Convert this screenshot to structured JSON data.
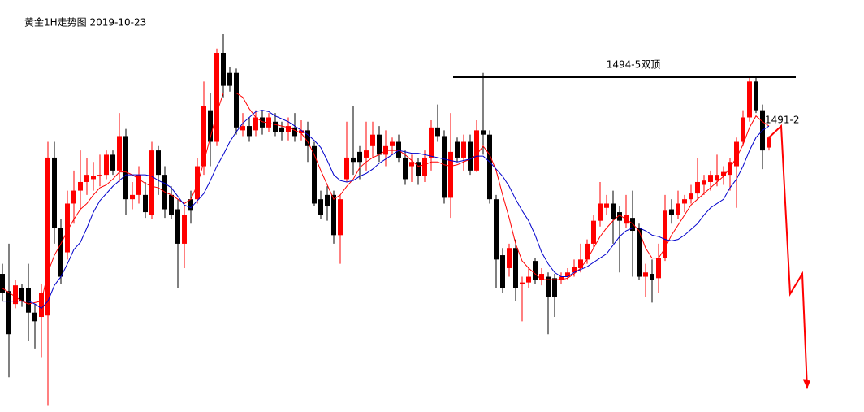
{
  "chart_data": {
    "type": "candlestick",
    "title": "黄金1H走势图 2019-10-23",
    "open": [
      1480.8,
      1479.6,
      1478.7,
      1479.8,
      1479.8,
      1478.1,
      1477.8,
      1477.9,
      1488.9,
      1484.0,
      1482.3,
      1485.7,
      1486.6,
      1487.2,
      1487.4,
      1487.6,
      1487.7,
      1489.1,
      1488.0,
      1490.4,
      1486.0,
      1486.3,
      1486.3,
      1484.9,
      1489.4,
      1487.7,
      1486.3,
      1485.3,
      1482.9,
      1486.0,
      1486.0,
      1488.3,
      1492.2,
      1490.0,
      1496.2,
      1494.8,
      1494.8,
      1490.8,
      1491.1,
      1490.8,
      1491.7,
      1491.0,
      1491.4,
      1491.0,
      1490.7,
      1491.0,
      1490.6,
      1490.8,
      1489.7,
      1486.0,
      1486.3,
      1486.3,
      1483.5,
      1487.4,
      1488.9,
      1489.3,
      1488.9,
      1489.7,
      1490.5,
      1489.1,
      1489.7,
      1490.0,
      1488.9,
      1488.3,
      1488.6,
      1487.6,
      1488.9,
      1491.0,
      1490.4,
      1486.1,
      1490.0,
      1488.9,
      1490.0,
      1488.0,
      1490.8,
      1490.5,
      1486.0,
      1482.1,
      1481.2,
      1482.6,
      1480.1,
      1480.2,
      1481.7,
      1480.4,
      1480.6,
      1480.5,
      1480.4,
      1480.6,
      1480.9,
      1481.2,
      1481.8,
      1482.9,
      1484.5,
      1485.4,
      1485.7,
      1485.1,
      1484.3,
      1484.7,
      1484.0,
      1480.6,
      1480.8,
      1480.5,
      1481.9,
      1485.3,
      1484.9,
      1485.7,
      1486.0,
      1486.4,
      1487.0,
      1487.2,
      1487.3,
      1487.6,
      1487.7,
      1488.3,
      1490.0,
      1491.7,
      1494.2,
      1492.2,
      1489.6
    ],
    "high": [
      1481.5,
      1482.9,
      1480.4,
      1480.1,
      1481.5,
      1478.7,
      1480.1,
      1490.0,
      1490.0,
      1484.6,
      1486.6,
      1488.0,
      1489.4,
      1488.9,
      1488.6,
      1489.1,
      1489.4,
      1489.4,
      1492.0,
      1490.9,
      1487.2,
      1488.3,
      1487.2,
      1490.0,
      1489.7,
      1488.3,
      1486.9,
      1486.0,
      1485.5,
      1486.6,
      1488.9,
      1494.2,
      1493.4,
      1496.5,
      1497.5,
      1495.2,
      1495.1,
      1492.0,
      1491.7,
      1492.2,
      1492.2,
      1492.0,
      1492.0,
      1491.4,
      1491.7,
      1492.0,
      1491.5,
      1491.4,
      1490.0,
      1486.6,
      1486.9,
      1486.6,
      1486.3,
      1491.4,
      1492.5,
      1489.7,
      1491.4,
      1491.4,
      1491.1,
      1490.8,
      1490.3,
      1490.5,
      1489.4,
      1489.1,
      1488.9,
      1489.4,
      1491.5,
      1492.6,
      1490.8,
      1492.0,
      1490.3,
      1490.5,
      1490.5,
      1491.5,
      1494.8,
      1490.8,
      1486.3,
      1482.6,
      1482.9,
      1483.2,
      1480.6,
      1481.2,
      1481.9,
      1481.2,
      1480.9,
      1480.8,
      1480.9,
      1481.2,
      1481.8,
      1482.9,
      1483.2,
      1484.9,
      1487.2,
      1486.3,
      1486.6,
      1485.5,
      1486.3,
      1486.6,
      1484.3,
      1481.5,
      1481.8,
      1482.9,
      1486.3,
      1486.0,
      1486.6,
      1486.3,
      1487.0,
      1488.9,
      1487.7,
      1488.0,
      1489.1,
      1488.3,
      1488.9,
      1490.3,
      1492.2,
      1494.5,
      1494.5,
      1492.6,
      1490.4
    ],
    "low": [
      1478.9,
      1473.6,
      1478.4,
      1478.5,
      1476.1,
      1475.6,
      1475.0,
      1471.6,
      1482.9,
      1480.1,
      1481.8,
      1484.3,
      1485.2,
      1486.3,
      1486.6,
      1486.9,
      1487.4,
      1487.7,
      1487.2,
      1484.9,
      1485.3,
      1485.7,
      1484.7,
      1484.6,
      1486.3,
      1484.7,
      1484.6,
      1479.8,
      1481.2,
      1484.3,
      1485.7,
      1487.7,
      1488.3,
      1489.7,
      1493.1,
      1493.5,
      1490.5,
      1490.4,
      1490.0,
      1490.4,
      1490.5,
      1490.7,
      1490.4,
      1490.1,
      1490.1,
      1490.0,
      1490.1,
      1488.6,
      1485.5,
      1484.6,
      1484.5,
      1482.9,
      1481.5,
      1487.2,
      1487.7,
      1487.4,
      1488.0,
      1488.9,
      1488.6,
      1488.3,
      1489.1,
      1488.6,
      1487.0,
      1487.2,
      1487.0,
      1487.2,
      1488.0,
      1490.0,
      1485.7,
      1484.7,
      1488.6,
      1488.0,
      1487.7,
      1487.9,
      1489.1,
      1485.7,
      1479.8,
      1479.5,
      1480.6,
      1478.9,
      1477.5,
      1479.8,
      1480.1,
      1480.0,
      1476.6,
      1477.8,
      1480.1,
      1480.4,
      1480.6,
      1480.9,
      1481.5,
      1482.6,
      1484.1,
      1484.9,
      1482.9,
      1480.9,
      1484.0,
      1480.6,
      1480.4,
      1479.2,
      1478.8,
      1479.5,
      1481.7,
      1484.3,
      1484.6,
      1485.1,
      1485.7,
      1486.0,
      1486.3,
      1486.6,
      1486.9,
      1487.0,
      1486.6,
      1485.4,
      1489.7,
      1491.4,
      1492.0,
      1488.1,
      1489.4
    ],
    "close": [
      1479.5,
      1476.6,
      1480.0,
      1478.9,
      1478.1,
      1477.5,
      1479.5,
      1488.9,
      1484.0,
      1480.6,
      1485.7,
      1486.6,
      1487.2,
      1487.7,
      1487.6,
      1487.7,
      1489.1,
      1488.0,
      1490.4,
      1486.0,
      1486.3,
      1487.7,
      1485.1,
      1489.4,
      1487.7,
      1485.3,
      1484.9,
      1482.9,
      1484.9,
      1485.2,
      1488.3,
      1492.5,
      1490.0,
      1496.2,
      1493.9,
      1493.9,
      1491.0,
      1491.1,
      1490.4,
      1491.7,
      1491.0,
      1491.7,
      1490.7,
      1490.7,
      1491.1,
      1490.4,
      1490.8,
      1489.7,
      1485.7,
      1484.9,
      1485.5,
      1483.5,
      1486.0,
      1488.9,
      1488.6,
      1488.6,
      1489.4,
      1490.5,
      1489.1,
      1489.7,
      1490.0,
      1488.9,
      1487.4,
      1488.6,
      1487.6,
      1488.9,
      1491.0,
      1490.4,
      1486.1,
      1489.3,
      1488.9,
      1490.0,
      1488.0,
      1490.8,
      1490.5,
      1486.0,
      1481.8,
      1479.8,
      1482.6,
      1479.8,
      1480.2,
      1480.6,
      1480.4,
      1480.8,
      1479.2,
      1479.2,
      1480.6,
      1480.9,
      1481.3,
      1481.8,
      1482.9,
      1484.5,
      1485.7,
      1485.7,
      1484.6,
      1484.5,
      1484.9,
      1483.8,
      1480.6,
      1480.9,
      1480.4,
      1481.9,
      1485.2,
      1484.9,
      1485.7,
      1486.0,
      1486.4,
      1487.2,
      1487.3,
      1487.7,
      1487.7,
      1487.9,
      1488.6,
      1490.0,
      1491.7,
      1494.2,
      1492.2,
      1489.4,
      1490.3
    ],
    "up_color": "#ff0000",
    "down_color": "#000000",
    "series": [
      {
        "color": "#ff0000",
        "values": [
          1479.8,
          1479.5,
          1479.2,
          1478.9,
          1478.7,
          1478.8,
          1478.9,
          1480.9,
          1482.1,
          1482.9,
          1483.8,
          1484.6,
          1485.3,
          1485.7,
          1486.3,
          1486.8,
          1487.0,
          1487.4,
          1487.9,
          1487.9,
          1487.7,
          1487.4,
          1487.1,
          1486.9,
          1486.8,
          1486.5,
          1486.3,
          1486.0,
          1485.7,
          1486.0,
          1487.0,
          1488.6,
          1490.3,
          1492.0,
          1493.4,
          1493.4,
          1493.4,
          1493.1,
          1492.3,
          1491.7,
          1491.4,
          1491.3,
          1491.2,
          1491.1,
          1491.0,
          1490.8,
          1490.6,
          1490.0,
          1489.1,
          1488.0,
          1487.0,
          1486.0,
          1486.3,
          1486.9,
          1487.4,
          1488.2,
          1488.6,
          1488.9,
          1489.1,
          1489.4,
          1489.4,
          1489.4,
          1489.1,
          1488.7,
          1488.3,
          1488.4,
          1488.6,
          1488.6,
          1488.4,
          1488.3,
          1488.4,
          1488.6,
          1488.8,
          1489.1,
          1489.7,
          1489.1,
          1488.0,
          1486.3,
          1484.7,
          1482.9,
          1481.7,
          1481.2,
          1480.8,
          1480.4,
          1480.4,
          1480.4,
          1480.4,
          1480.5,
          1480.8,
          1481.2,
          1481.8,
          1482.6,
          1483.4,
          1484.0,
          1484.5,
          1484.9,
          1484.6,
          1484.3,
          1483.8,
          1482.6,
          1481.9,
          1481.9,
          1482.6,
          1483.5,
          1484.2,
          1484.9,
          1485.6,
          1486.0,
          1486.4,
          1486.8,
          1487.2,
          1487.6,
          1488.2,
          1488.9,
          1489.8,
          1491.0,
          1491.8,
          1491.4,
          1491.1
        ]
      },
      {
        "color": "#0000cc",
        "values": [
          1478.9,
          1478.9,
          1478.9,
          1478.9,
          1478.9,
          1478.7,
          1478.4,
          1478.9,
          1480.0,
          1480.6,
          1481.5,
          1482.5,
          1483.0,
          1484.0,
          1485.1,
          1485.9,
          1486.4,
          1486.9,
          1487.3,
          1487.7,
          1487.7,
          1487.7,
          1487.7,
          1487.6,
          1487.3,
          1487.1,
          1486.8,
          1486.2,
          1485.6,
          1485.4,
          1485.9,
          1486.4,
          1487.3,
          1488.3,
          1489.1,
          1490.0,
          1490.7,
          1491.3,
          1491.7,
          1492.1,
          1492.2,
          1492.1,
          1491.8,
          1491.6,
          1491.4,
          1491.1,
          1490.8,
          1490.5,
          1490.1,
          1489.6,
          1488.7,
          1487.7,
          1487.3,
          1487.2,
          1487.3,
          1487.6,
          1487.8,
          1488.1,
          1488.5,
          1488.8,
          1489.1,
          1489.4,
          1489.3,
          1489.2,
          1489.2,
          1489.1,
          1489.0,
          1488.9,
          1488.8,
          1488.7,
          1488.6,
          1488.7,
          1488.8,
          1489.0,
          1489.0,
          1488.6,
          1488.1,
          1487.6,
          1486.9,
          1486.0,
          1485.2,
          1484.5,
          1483.5,
          1482.3,
          1481.5,
          1480.9,
          1480.6,
          1480.6,
          1480.9,
          1481.1,
          1481.3,
          1481.6,
          1481.9,
          1482.2,
          1482.8,
          1483.4,
          1483.8,
          1484.0,
          1484.0,
          1483.8,
          1483.5,
          1483.4,
          1483.2,
          1483.1,
          1483.2,
          1483.5,
          1483.9,
          1484.3,
          1484.9,
          1485.4,
          1485.7,
          1486.0,
          1486.8,
          1487.4,
          1488.3,
          1489.4,
          1490.3,
          1490.8,
          1491.1
        ]
      }
    ],
    "resistance": {
      "label": "1494-5双顶",
      "value": 1494.5
    },
    "target_label": "1491-2",
    "projection": {
      "color": "#ff0000",
      "values": [
        1491.1,
        1479.4,
        1480.8,
        1472.8
      ]
    },
    "ylim": [
      1471.5,
      1498
    ]
  }
}
